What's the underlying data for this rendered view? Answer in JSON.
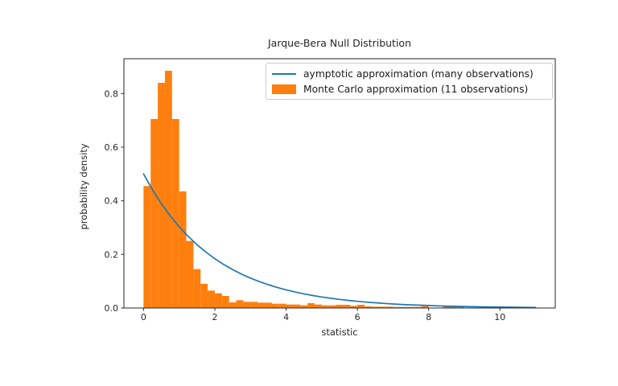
{
  "figure": {
    "title": "Jarque-Bera Null Distribution",
    "xlabel": "statistic",
    "ylabel": "probability density"
  },
  "legend": {
    "entries": [
      {
        "type": "line",
        "color": "#1f77b4",
        "label": "aymptotic approximation (many observations)"
      },
      {
        "type": "patch",
        "color": "#ff7f0e",
        "label": "Monte Carlo approximation (11 observations)"
      }
    ]
  },
  "chart_data": {
    "type": "histogram+line",
    "title": "Jarque-Bera Null Distribution",
    "xlabel": "statistic",
    "ylabel": "probability density",
    "xlim": [
      -0.55,
      11.55
    ],
    "ylim": [
      0,
      0.93
    ],
    "x_ticks": [
      0,
      2,
      4,
      6,
      8,
      10
    ],
    "x_tick_labels": [
      "0",
      "2",
      "4",
      "6",
      "8",
      "10"
    ],
    "y_ticks": [
      0.0,
      0.2,
      0.4,
      0.6,
      0.8
    ],
    "y_tick_labels": [
      "0.0",
      "0.2",
      "0.4",
      "0.6",
      "0.8"
    ],
    "grid": false,
    "legend_position": "upper right",
    "colors": {
      "line": "#1f77b4",
      "bars": "#ff7f0e"
    },
    "histogram": {
      "name": "Monte Carlo approximation (11 observations)",
      "bin_start": 0,
      "bin_width": 0.2,
      "densities": [
        0.455,
        0.705,
        0.84,
        0.885,
        0.705,
        0.435,
        0.25,
        0.145,
        0.09,
        0.065,
        0.055,
        0.045,
        0.021,
        0.029,
        0.023,
        0.023,
        0.02,
        0.02,
        0.016,
        0.016,
        0.013,
        0.013,
        0.01,
        0.018,
        0.013,
        0.01,
        0.01,
        0.012,
        0.012,
        0.008,
        0.012,
        0.006,
        0.005,
        0.005,
        0.005,
        0.004,
        0.004,
        0.004,
        0.004,
        0.007,
        0.0,
        0.0,
        0.005,
        0.005,
        0.004,
        0.0,
        0.0,
        0.0,
        0.0,
        0.0,
        0.0,
        0.0,
        0.0,
        0.004,
        0.004
      ]
    },
    "line": {
      "name": "aymptotic approximation (many observations)",
      "description": "chi-squared(df=2) pdf: 0.5*exp(-x/2)",
      "x": [
        0,
        0.25,
        0.5,
        0.75,
        1,
        1.25,
        1.5,
        1.75,
        2,
        2.25,
        2.5,
        2.75,
        3,
        3.25,
        3.5,
        3.75,
        4,
        4.25,
        4.5,
        4.75,
        5,
        5.25,
        5.5,
        5.75,
        6,
        6.25,
        6.5,
        6.75,
        7,
        7.25,
        7.5,
        7.75,
        8,
        8.25,
        8.5,
        8.75,
        9,
        9.25,
        9.5,
        9.75,
        10,
        10.25,
        10.5,
        10.75,
        11
      ],
      "y": [
        0.5,
        0.4412,
        0.3894,
        0.3436,
        0.3033,
        0.2676,
        0.2362,
        0.2084,
        0.1839,
        0.1623,
        0.1433,
        0.1264,
        0.1116,
        0.0985,
        0.0869,
        0.0767,
        0.0677,
        0.0597,
        0.0527,
        0.0465,
        0.041,
        0.0362,
        0.032,
        0.0282,
        0.0249,
        0.022,
        0.0194,
        0.0171,
        0.0151,
        0.0133,
        0.0118,
        0.0104,
        0.0092,
        0.0081,
        0.0071,
        0.0063,
        0.0056,
        0.0049,
        0.0043,
        0.0038,
        0.0034,
        0.003,
        0.0026,
        0.0023,
        0.002
      ]
    }
  }
}
